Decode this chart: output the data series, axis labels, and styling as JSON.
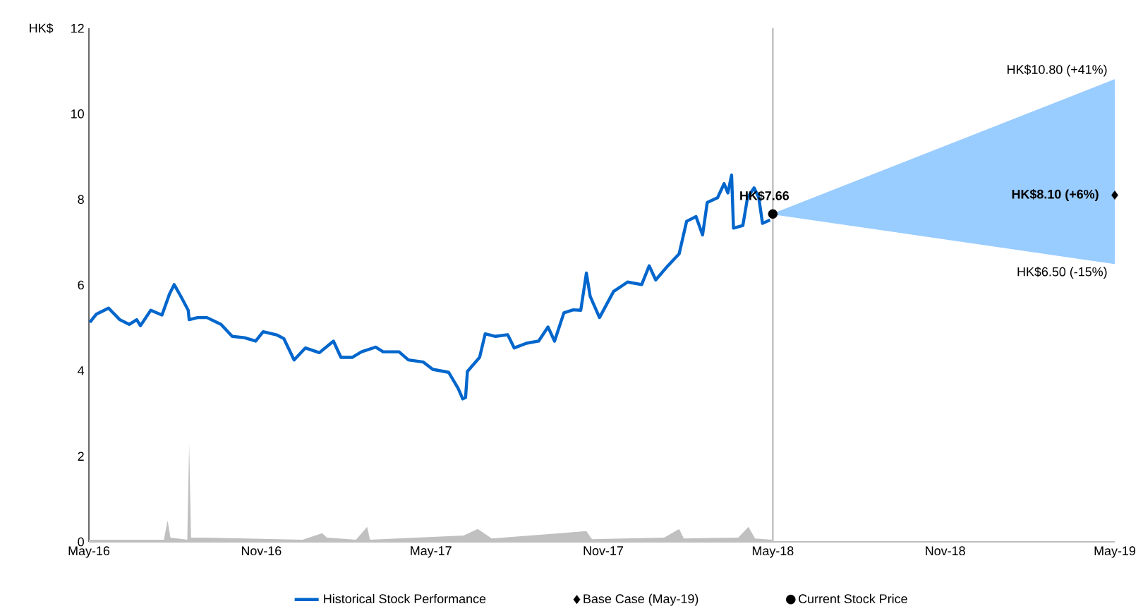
{
  "chart_data": {
    "type": "line",
    "ylabel": "HK$",
    "xlim": [
      "2016-05-01",
      "2019-05-01"
    ],
    "ylim": [
      0,
      12
    ],
    "xticks": [
      {
        "value": "2016-05-01",
        "label": "May-16"
      },
      {
        "value": "2016-11-01",
        "label": "Nov-16"
      },
      {
        "value": "2017-05-01",
        "label": "May-17"
      },
      {
        "value": "2017-11-01",
        "label": "Nov-17"
      },
      {
        "value": "2018-05-01",
        "label": "May-18"
      },
      {
        "value": "2018-11-01",
        "label": "Nov-18"
      },
      {
        "value": "2019-05-01",
        "label": "May-19"
      }
    ],
    "yticks": [
      0,
      2,
      4,
      6,
      8,
      10,
      12
    ],
    "grid": false,
    "legend": "bottom",
    "ref_lines": [
      {
        "axis": "x",
        "value": "2018-05-01",
        "color": "#bfbfbf"
      }
    ],
    "annotations": [
      {
        "text": "HK$7.66",
        "x": "2018-05-01",
        "y": 7.66
      },
      {
        "text": "HK$10.80 (+41%)",
        "x": "2019-05-01",
        "y": 10.8
      },
      {
        "text": "HK$6.50 (-15%)",
        "x": "2019-05-01",
        "y": 6.5
      },
      {
        "text": "HK$8.10 (+6%)",
        "x": "2019-05-01",
        "y": 8.1
      }
    ],
    "series": [
      {
        "name": "Base Case  (May-19)",
        "type": "scatter",
        "marker": "diamond",
        "color": "#000000",
        "x": [
          "2019-05-01"
        ],
        "values": [
          8.1
        ]
      },
      {
        "name": "Historical Stock Performance",
        "marker": "none",
        "color": "#0066cc",
        "x": [
          "2016-05-02",
          "2016-05-09",
          "2016-05-22",
          "2016-06-03",
          "2016-06-13",
          "2016-06-21",
          "2016-06-25",
          "2016-07-06",
          "2016-07-18",
          "2016-07-26",
          "2016-07-31",
          "2016-08-07",
          "2016-08-15",
          "2016-08-16",
          "2016-08-25",
          "2016-09-04",
          "2016-09-19",
          "2016-10-01",
          "2016-10-14",
          "2016-10-26",
          "2016-11-03",
          "2016-11-18",
          "2016-11-25",
          "2016-12-06",
          "2016-12-18",
          "2017-01-02",
          "2017-01-17",
          "2017-01-25",
          "2017-02-06",
          "2017-02-16",
          "2017-03-03",
          "2017-03-11",
          "2017-03-28",
          "2017-04-07",
          "2017-04-23",
          "2017-05-03",
          "2017-05-20",
          "2017-05-30",
          "2017-06-04",
          "2017-06-07",
          "2017-06-09",
          "2017-06-22",
          "2017-06-28",
          "2017-07-09",
          "2017-07-22",
          "2017-07-29",
          "2017-08-11",
          "2017-08-24",
          "2017-09-03",
          "2017-09-10",
          "2017-09-20",
          "2017-09-30",
          "2017-10-08",
          "2017-10-14",
          "2017-10-18",
          "2017-10-28",
          "2017-11-12",
          "2017-11-27",
          "2017-12-12",
          "2017-12-20",
          "2017-12-27",
          "2018-01-09",
          "2018-01-21",
          "2018-01-29",
          "2018-02-08",
          "2018-02-15",
          "2018-02-20",
          "2018-03-03",
          "2018-03-10",
          "2018-03-14",
          "2018-03-18",
          "2018-03-20",
          "2018-03-30",
          "2018-04-04",
          "2018-04-11",
          "2018-04-16",
          "2018-04-20",
          "2018-04-28"
        ],
        "values": [
          5.13,
          5.32,
          5.46,
          5.19,
          5.08,
          5.19,
          5.05,
          5.41,
          5.3,
          5.79,
          6.01,
          5.74,
          5.41,
          5.19,
          5.24,
          5.24,
          5.08,
          4.8,
          4.77,
          4.69,
          4.91,
          4.83,
          4.75,
          4.25,
          4.53,
          4.42,
          4.69,
          4.31,
          4.31,
          4.44,
          4.55,
          4.44,
          4.44,
          4.25,
          4.2,
          4.03,
          3.96,
          3.59,
          3.34,
          3.37,
          3.98,
          4.31,
          4.86,
          4.8,
          4.84,
          4.53,
          4.64,
          4.69,
          5.02,
          4.69,
          5.35,
          5.42,
          5.41,
          6.28,
          5.74,
          5.24,
          5.85,
          6.07,
          6.01,
          6.45,
          6.12,
          6.45,
          6.73,
          7.49,
          7.6,
          7.17,
          7.93,
          8.04,
          8.37,
          8.15,
          8.57,
          7.33,
          7.39,
          8.04,
          8.27,
          8.04,
          7.44,
          7.52
        ]
      },
      {
        "name": "Current Stock Price",
        "type": "scatter",
        "marker": "circle",
        "color": "#000000",
        "x": [
          "2018-05-01"
        ],
        "values": [
          7.66
        ]
      },
      {
        "type": "line",
        "marker": "none",
        "color": "#99ccff",
        "x": [
          "2018-05-01",
          "2019-05-01"
        ],
        "values": [
          null,
          null
        ],
        "lower": [
          7.66,
          6.5
        ],
        "upper": [
          7.66,
          10.8
        ]
      },
      {
        "type": "area",
        "color": "#c0c0c0",
        "x": [
          "2016-05-01",
          "2016-07-20",
          "2016-07-24",
          "2016-07-27",
          "2016-08-14",
          "2016-08-16",
          "2016-08-18",
          "2016-09-01",
          "2016-12-15",
          "2017-01-05",
          "2017-01-10",
          "2017-02-10",
          "2017-02-22",
          "2017-02-25",
          "2017-06-05",
          "2017-06-20",
          "2017-07-05",
          "2017-10-14",
          "2017-10-20",
          "2018-01-05",
          "2018-01-21",
          "2018-01-26",
          "2018-03-25",
          "2018-04-05",
          "2018-04-12",
          "2018-04-30"
        ],
        "values": [
          0.05,
          0.05,
          0.5,
          0.1,
          0.05,
          2.3,
          0.1,
          0.1,
          0.05,
          0.2,
          0.1,
          0.05,
          0.35,
          0.05,
          0.15,
          0.3,
          0.08,
          0.25,
          0.06,
          0.1,
          0.3,
          0.08,
          0.1,
          0.35,
          0.08,
          0.05
        ]
      }
    ]
  }
}
